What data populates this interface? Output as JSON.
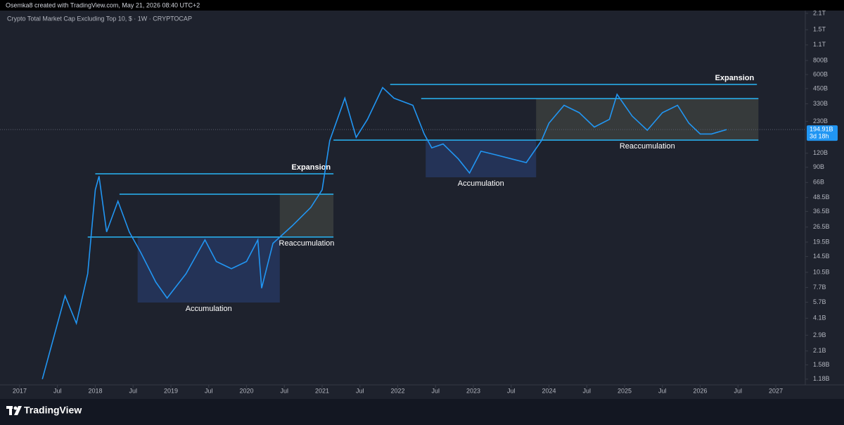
{
  "header": {
    "credit": "Osemka8 created with TradingView.com, May 21, 2026 08:40 UTC+2",
    "logo": "TradingView"
  },
  "chart_data": {
    "type": "line",
    "title": "Crypto Total Market Cap Excluding Top 10, $ · 1W · CRYPTOCAP",
    "log_scale": true,
    "grid": false,
    "series": [
      {
        "name": "CRYPTOCAP",
        "color": "#2196f3",
        "x": [
          2017.3,
          2017.45,
          2017.6,
          2017.75,
          2017.9,
          2018.0,
          2018.05,
          2018.15,
          2018.3,
          2018.45,
          2018.6,
          2018.8,
          2018.95,
          2019.2,
          2019.45,
          2019.6,
          2019.8,
          2020.0,
          2020.15,
          2020.2,
          2020.35,
          2020.6,
          2020.85,
          2021.0,
          2021.1,
          2021.3,
          2021.45,
          2021.6,
          2021.8,
          2021.95,
          2022.2,
          2022.35,
          2022.45,
          2022.6,
          2022.8,
          2022.95,
          2023.1,
          2023.3,
          2023.5,
          2023.7,
          2023.9,
          2024.0,
          2024.2,
          2024.4,
          2024.6,
          2024.8,
          2024.9,
          2025.1,
          2025.3,
          2025.5,
          2025.7,
          2025.85,
          2026.0,
          2026.15,
          2026.35
        ],
        "values": [
          1180000000.0,
          2760000000.0,
          6500000000.0,
          3700000000.0,
          10200000000.0,
          56700000000.0,
          75000000000.0,
          24000000000.0,
          45000000000.0,
          24000000000.0,
          15800000000.0,
          8600000000.0,
          6200000000.0,
          10200000000.0,
          20400000000.0,
          13100000000.0,
          11300000000.0,
          13100000000.0,
          20400000000.0,
          7600000000.0,
          19000000000.0,
          27000000000.0,
          39600000000.0,
          56700000000.0,
          155000000000.0,
          370000000000.0,
          166000000000.0,
          240000000000.0,
          460000000000.0,
          370000000000.0,
          320000000000.0,
          178000000000.0,
          134000000000.0,
          145000000000.0,
          107000000000.0,
          80000000000.0,
          125000000000.0,
          116000000000.0,
          107000000000.0,
          99000000000.0,
          155000000000.0,
          222000000000.0,
          320000000000.0,
          275000000000.0,
          205000000000.0,
          240000000000.0,
          400000000000.0,
          257000000000.0,
          192000000000.0,
          275000000000.0,
          320000000000.0,
          222000000000.0,
          178000000000.0,
          178000000000.0,
          194910000000.0
        ]
      }
    ],
    "last_price": 194910000000.0,
    "last_price_label": "194.91B",
    "countdown": "3d 18h",
    "zones": [
      {
        "label": "Accumulation",
        "color": "#26365f",
        "x": [
          2018.56,
          2020.44
        ],
        "y": [
          5660000000.0,
          21600000000.0
        ]
      },
      {
        "label": "Reaccumulation",
        "color": "#3b3e3e",
        "x": [
          2020.44,
          2021.15
        ],
        "y": [
          21600000000.0,
          51900000000.0
        ]
      },
      {
        "label": "Accumulation",
        "color": "#26365f",
        "x": [
          2022.37,
          2023.83
        ],
        "y": [
          73300000000.0,
          157000000000.0
        ]
      },
      {
        "label": "Reaccumulation",
        "color": "#3b3e3e",
        "x": [
          2023.83,
          2026.77
        ],
        "y": [
          157000000000.0,
          367000000000.0
        ]
      }
    ],
    "levels": [
      {
        "label": "Expansion",
        "value": 78800000000.0,
        "x": [
          2018.0,
          2021.15
        ]
      },
      {
        "value": 51900000000.0,
        "x": [
          2018.32,
          2021.15
        ]
      },
      {
        "value": 21600000000.0,
        "x": [
          2017.9,
          2021.15
        ]
      },
      {
        "label": "Expansion",
        "value": 490000000000.0,
        "x": [
          2021.9,
          2026.75
        ]
      },
      {
        "value": 367000000000.0,
        "x": [
          2022.31,
          2026.77
        ]
      },
      {
        "value": 157000000000.0,
        "x": [
          2021.15,
          2026.77
        ]
      }
    ],
    "level_color": "#29b6f6",
    "xlim": [
      2016.74,
      2027.39
    ],
    "xticks": [
      2017,
      {
        "value": 2017.5,
        "label": "Jul"
      },
      2018,
      {
        "value": 2018.5,
        "label": "Jul"
      },
      2019,
      {
        "value": 2019.5,
        "label": "Jul"
      },
      2020,
      {
        "value": 2020.5,
        "label": "Jul"
      },
      2021,
      {
        "value": 2021.5,
        "label": "Jul"
      },
      2022,
      {
        "value": 2022.5,
        "label": "Jul"
      },
      2023,
      {
        "value": 2023.5,
        "label": "Jul"
      },
      2024,
      {
        "value": 2024.5,
        "label": "Jul"
      },
      2025,
      {
        "value": 2025.5,
        "label": "Jul"
      },
      2026,
      {
        "value": 2026.5,
        "label": "Jul"
      },
      2027
    ],
    "ylim": [
      1080000000.0,
      2320000000000.0
    ],
    "yticks": [
      {
        "value": 1180000000.0,
        "label": "1.18B"
      },
      {
        "value": 1580000000.0,
        "label": "1.58B"
      },
      {
        "value": 2100000000.0,
        "label": "2.1B"
      },
      {
        "value": 2900000000.0,
        "label": "2.9B"
      },
      {
        "value": 4100000000.0,
        "label": "4.1B"
      },
      {
        "value": 5700000000.0,
        "label": "5.7B"
      },
      {
        "value": 7700000000.0,
        "label": "7.7B"
      },
      {
        "value": 10500000000.0,
        "label": "10.5B"
      },
      {
        "value": 14500000000.0,
        "label": "14.5B"
      },
      {
        "value": 19500000000.0,
        "label": "19.5B"
      },
      {
        "value": 26500000000.0,
        "label": "26.5B"
      },
      {
        "value": 36500000000.0,
        "label": "36.5B"
      },
      {
        "value": 48500000000.0,
        "label": "48.5B"
      },
      {
        "value": 66000000000.0,
        "label": "66B"
      },
      {
        "value": 90000000000.0,
        "label": "90B"
      },
      {
        "value": 120000000000.0,
        "label": "120B"
      },
      {
        "value": 230000000000.0,
        "label": "230B"
      },
      {
        "value": 330000000000.0,
        "label": "330B"
      },
      {
        "value": 450000000000.0,
        "label": "450B"
      },
      {
        "value": 600000000000.0,
        "label": "600B"
      },
      {
        "value": 800000000000.0,
        "label": "800B"
      },
      {
        "value": 1100000000000.0,
        "label": "1.1T"
      },
      {
        "value": 1500000000000.0,
        "label": "1.5T"
      },
      {
        "value": 2100000000000.0,
        "label": "2.1T"
      }
    ]
  }
}
